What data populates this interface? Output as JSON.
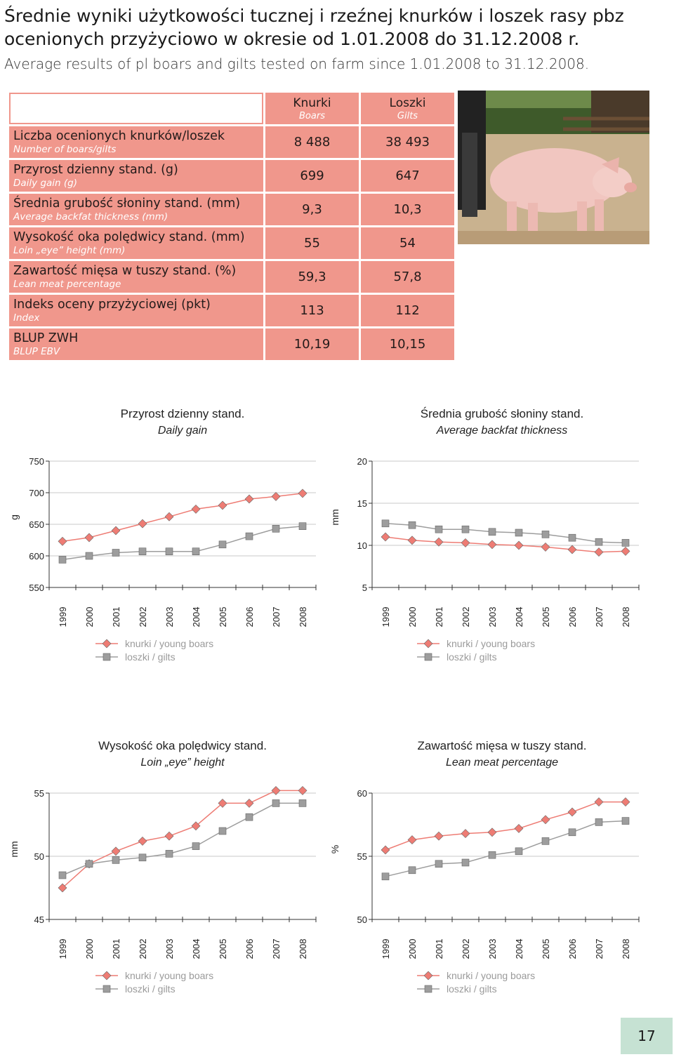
{
  "header": {
    "title_pl": "Średnie wyniki użytkowości tucznej i rzeźnej knurków i loszek rasy pbz ocenionych przyżyciowo w okresie od 1.01.2008 do 31.12.2008 r.",
    "title_en": "Average results of pl boars and gilts tested on farm since 1.01.2008 to 31.12.2008."
  },
  "table": {
    "head": {
      "boars_pl": "Knurki",
      "boars_en": "Boars",
      "gilts_pl": "Loszki",
      "gilts_en": "Gilts"
    },
    "rows": [
      {
        "label_pl": "Liczba ocenionych knurków/loszek",
        "label_en": "Number of boars/gilts",
        "boars": "8 488",
        "gilts": "38 493"
      },
      {
        "label_pl": "Przyrost dzienny stand. (g)",
        "label_en": "Daily gain (g)",
        "boars": "699",
        "gilts": "647"
      },
      {
        "label_pl": "Średnia grubość słoniny stand. (mm)",
        "label_en": "Average backfat thickness (mm)",
        "boars": "9,3",
        "gilts": "10,3"
      },
      {
        "label_pl": "Wysokość oka polędwicy stand. (mm)",
        "label_en": "Loin „eye” height (mm)",
        "boars": "55",
        "gilts": "54"
      },
      {
        "label_pl": "Zawartość mięsa w tuszy stand. (%)",
        "label_en": "Lean meat percentage",
        "boars": "59,3",
        "gilts": "57,8"
      },
      {
        "label_pl": "Indeks oceny przyżyciowej (pkt)",
        "label_en": "Index",
        "boars": "113",
        "gilts": "112"
      },
      {
        "label_pl": "BLUP ZWH",
        "label_en": "BLUP EBV",
        "boars": "10,19",
        "gilts": "10,15"
      }
    ]
  },
  "colors": {
    "table_bg": "#f0978c",
    "boars_marker": "#ee7c74",
    "gilts_marker": "#9d9d9d",
    "page_tab": "#c6e2d3"
  },
  "chart_data": [
    {
      "type": "line",
      "title": "Przyrost dzienny stand.",
      "subtitle": "Daily gain",
      "ylabel": "g",
      "ylim": [
        550,
        750
      ],
      "yticks": [
        550,
        600,
        650,
        700,
        750
      ],
      "categories": [
        "1999",
        "2000",
        "2001",
        "2002",
        "2003",
        "2004",
        "2005",
        "2006",
        "2007",
        "2008"
      ],
      "series": [
        {
          "name": "knurki / young boars",
          "marker": "diamond",
          "values": [
            623,
            629,
            640,
            651,
            662,
            674,
            680,
            690,
            694,
            699
          ]
        },
        {
          "name": "loszki / gilts",
          "marker": "square",
          "values": [
            594,
            600,
            605,
            607,
            607,
            607,
            618,
            631,
            643,
            647
          ]
        }
      ]
    },
    {
      "type": "line",
      "title": "Średnia grubość słoniny stand.",
      "subtitle": "Average backfat thickness",
      "ylabel": "mm",
      "ylim": [
        5,
        20
      ],
      "yticks": [
        5,
        10,
        15,
        20
      ],
      "categories": [
        "1999",
        "2000",
        "2001",
        "2002",
        "2003",
        "2004",
        "2005",
        "2006",
        "2007",
        "2008"
      ],
      "series": [
        {
          "name": "knurki / young boars",
          "marker": "diamond",
          "values": [
            11.0,
            10.6,
            10.4,
            10.3,
            10.1,
            10.0,
            9.8,
            9.5,
            9.2,
            9.3
          ]
        },
        {
          "name": "loszki / gilts",
          "marker": "square",
          "values": [
            12.6,
            12.4,
            11.9,
            11.9,
            11.6,
            11.5,
            11.3,
            10.9,
            10.4,
            10.3
          ]
        }
      ]
    },
    {
      "type": "line",
      "title": "Wysokość oka polędwicy stand.",
      "subtitle": "Loin „eye” height",
      "ylabel": "mm",
      "ylim": [
        45,
        55
      ],
      "yticks": [
        45,
        50,
        55
      ],
      "categories": [
        "1999",
        "2000",
        "2001",
        "2002",
        "2003",
        "2004",
        "2005",
        "2006",
        "2007",
        "2008"
      ],
      "series": [
        {
          "name": "knurki / young boars",
          "marker": "diamond",
          "values": [
            47.5,
            49.4,
            50.4,
            51.2,
            51.6,
            52.4,
            54.2,
            54.2,
            55.2,
            55.2
          ]
        },
        {
          "name": "loszki / gilts",
          "marker": "square",
          "values": [
            48.5,
            49.4,
            49.7,
            49.9,
            50.2,
            50.8,
            52.0,
            53.1,
            54.2,
            54.2
          ]
        }
      ]
    },
    {
      "type": "line",
      "title": "Zawartość mięsa w tuszy stand.",
      "subtitle": "Lean meat percentage",
      "ylabel": "%",
      "ylim": [
        50,
        60
      ],
      "yticks": [
        50,
        55,
        60
      ],
      "categories": [
        "1999",
        "2000",
        "2001",
        "2002",
        "2003",
        "2004",
        "2005",
        "2006",
        "2007",
        "2008"
      ],
      "series": [
        {
          "name": "knurki / young boars",
          "marker": "diamond",
          "values": [
            55.5,
            56.3,
            56.6,
            56.8,
            56.9,
            57.2,
            57.9,
            58.5,
            59.3,
            59.3
          ]
        },
        {
          "name": "loszki / gilts",
          "marker": "square",
          "values": [
            53.4,
            53.9,
            54.4,
            54.5,
            55.1,
            55.4,
            56.2,
            56.9,
            57.7,
            57.8
          ]
        }
      ]
    }
  ],
  "page": {
    "number": "17"
  }
}
